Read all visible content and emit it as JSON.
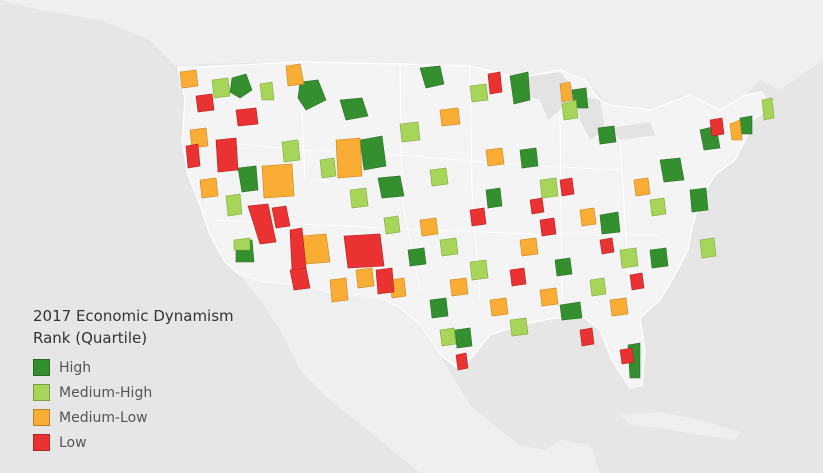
{
  "legend": {
    "title": "2017 Economic Dynamism Rank (Quartile)",
    "items": [
      {
        "label": "High",
        "color": "#34902f"
      },
      {
        "label": "Medium-High",
        "color": "#a7d55a"
      },
      {
        "label": "Medium-Low",
        "color": "#f9ad35"
      },
      {
        "label": "Low",
        "color": "#ea3232"
      }
    ]
  },
  "colors": {
    "background": "#e9e9e9",
    "land": "#f4f4f4",
    "water": "#e3e3e3",
    "border": "#ffffff",
    "legend_text": "#333333"
  }
}
